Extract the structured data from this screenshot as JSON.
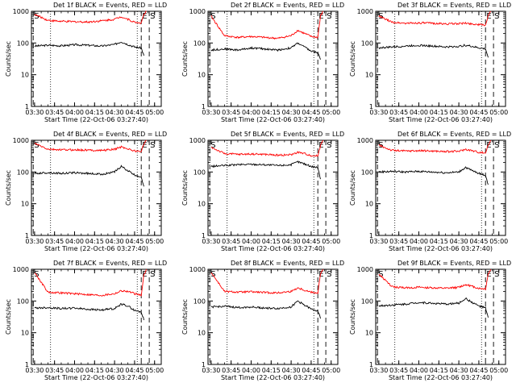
{
  "page": {
    "xlabel": "Start Time (22-Oct-06 03:27:40)",
    "ylabel": "Counts/sec"
  },
  "colors": {
    "events": "#000000",
    "lld": "#ff0000",
    "axes": "#000000"
  },
  "chart_data": [
    {
      "type": "line",
      "title": "Det 1f BLACK = Events, RED = LLD",
      "xlabel": "Start Time (22-Oct-06 03:27:40)",
      "ylabel": "Counts/sec",
      "xticks": [
        "03:30",
        "03:45",
        "04:00",
        "04:15",
        "04:30",
        "04:45",
        "05:00"
      ],
      "xlim": [
        "03:27:40",
        "05:05"
      ],
      "yscale": "log",
      "ylim": [
        1,
        1000
      ],
      "yticks": [
        "1",
        "10",
        "100",
        "1000"
      ],
      "markers": [
        {
          "label": "S",
          "time": "03:29"
        },
        {
          "label": "E",
          "time": "04:50"
        },
        {
          "label": "S",
          "time": "04:56"
        }
      ],
      "dotted_lines": [
        "03:42",
        "04:47"
      ],
      "series": [
        {
          "name": "Events",
          "time": [
            "03:30",
            "03:40",
            "03:50",
            "04:00",
            "04:10",
            "04:20",
            "04:30",
            "04:35",
            "04:40",
            "04:45",
            "04:50",
            "04:52"
          ],
          "values": [
            80,
            85,
            82,
            88,
            85,
            80,
            90,
            110,
            90,
            75,
            70,
            40
          ]
        },
        {
          "name": "LLD",
          "time": [
            "03:30",
            "03:40",
            "03:50",
            "04:00",
            "04:10",
            "04:20",
            "04:30",
            "04:35",
            "04:40",
            "04:45",
            "04:50",
            "04:52",
            "04:54"
          ],
          "values": [
            800,
            520,
            480,
            470,
            460,
            500,
            560,
            680,
            560,
            450,
            430,
            800,
            1000
          ]
        }
      ]
    },
    {
      "type": "line",
      "title": "Det 2f BLACK = Events, RED = LLD",
      "xlabel": "Start Time (22-Oct-06 03:27:40)",
      "ylabel": "Counts/sec",
      "xticks": [
        "03:30",
        "03:45",
        "04:00",
        "04:15",
        "04:30",
        "04:45",
        "05:00"
      ],
      "xlim": [
        "03:27:40",
        "05:05"
      ],
      "yscale": "log",
      "ylim": [
        1,
        1000
      ],
      "yticks": [
        "1",
        "10",
        "100",
        "1000"
      ],
      "markers": [
        {
          "label": "S",
          "time": "03:29"
        },
        {
          "label": "E",
          "time": "04:50"
        },
        {
          "label": "S",
          "time": "04:56"
        }
      ],
      "dotted_lines": [
        "03:42",
        "04:47"
      ],
      "series": [
        {
          "name": "Events",
          "time": [
            "03:30",
            "03:40",
            "03:50",
            "04:00",
            "04:10",
            "04:20",
            "04:30",
            "04:35",
            "04:40",
            "04:45",
            "04:50",
            "04:52"
          ],
          "values": [
            60,
            65,
            60,
            70,
            65,
            60,
            70,
            100,
            75,
            55,
            50,
            30
          ]
        },
        {
          "name": "LLD",
          "time": [
            "03:30",
            "03:40",
            "03:50",
            "04:00",
            "04:10",
            "04:20",
            "04:30",
            "04:35",
            "04:40",
            "04:45",
            "04:50",
            "04:52",
            "04:54"
          ],
          "values": [
            700,
            170,
            150,
            160,
            150,
            140,
            170,
            250,
            200,
            160,
            150,
            700,
            1000
          ]
        }
      ]
    },
    {
      "type": "line",
      "title": "Det 3f BLACK = Events, RED = LLD",
      "xlabel": "Start Time (22-Oct-06 03:27:40)",
      "ylabel": "Counts/sec",
      "xticks": [
        "03:30",
        "03:45",
        "04:00",
        "04:15",
        "04:30",
        "04:45",
        "05:00"
      ],
      "xlim": [
        "03:27:40",
        "05:05"
      ],
      "yscale": "log",
      "ylim": [
        1,
        1000
      ],
      "yticks": [
        "1",
        "10",
        "100",
        "1000"
      ],
      "markers": [
        {
          "label": "S",
          "time": "03:29"
        },
        {
          "label": "E",
          "time": "04:50"
        },
        {
          "label": "S",
          "time": "04:56"
        }
      ],
      "dotted_lines": [
        "03:42",
        "04:47"
      ],
      "series": [
        {
          "name": "Events",
          "time": [
            "03:30",
            "03:40",
            "03:50",
            "04:00",
            "04:10",
            "04:20",
            "04:30",
            "04:35",
            "04:40",
            "04:45",
            "04:50",
            "04:52"
          ],
          "values": [
            70,
            75,
            80,
            85,
            80,
            75,
            78,
            85,
            78,
            70,
            65,
            35
          ]
        },
        {
          "name": "LLD",
          "time": [
            "03:30",
            "03:40",
            "03:50",
            "04:00",
            "04:10",
            "04:20",
            "04:30",
            "04:35",
            "04:40",
            "04:45",
            "04:50",
            "04:52",
            "04:54"
          ],
          "values": [
            700,
            450,
            420,
            430,
            420,
            400,
            410,
            420,
            400,
            380,
            370,
            700,
            1000
          ]
        }
      ]
    },
    {
      "type": "line",
      "title": "Det 4f BLACK = Events, RED = LLD",
      "xlabel": "Start Time (22-Oct-06 03:27:40)",
      "ylabel": "Counts/sec",
      "xticks": [
        "03:30",
        "03:45",
        "04:00",
        "04:15",
        "04:30",
        "04:45",
        "05:00"
      ],
      "xlim": [
        "03:27:40",
        "05:05"
      ],
      "yscale": "log",
      "ylim": [
        1,
        1000
      ],
      "yticks": [
        "1",
        "10",
        "100",
        "1000"
      ],
      "markers": [
        {
          "label": "S",
          "time": "03:29"
        },
        {
          "label": "E",
          "time": "04:50"
        },
        {
          "label": "S",
          "time": "04:56"
        }
      ],
      "dotted_lines": [
        "03:42",
        "04:47"
      ],
      "series": [
        {
          "name": "Events",
          "time": [
            "03:30",
            "03:40",
            "03:50",
            "04:00",
            "04:10",
            "04:20",
            "04:30",
            "04:35",
            "04:40",
            "04:45",
            "04:50",
            "04:52"
          ],
          "values": [
            90,
            95,
            90,
            95,
            90,
            85,
            100,
            150,
            110,
            80,
            70,
            35
          ]
        },
        {
          "name": "LLD",
          "time": [
            "03:30",
            "03:40",
            "03:50",
            "04:00",
            "04:10",
            "04:20",
            "04:30",
            "04:35",
            "04:40",
            "04:45",
            "04:50",
            "04:52",
            "04:54"
          ],
          "values": [
            800,
            520,
            500,
            500,
            490,
            480,
            520,
            620,
            540,
            460,
            440,
            800,
            1000
          ]
        }
      ]
    },
    {
      "type": "line",
      "title": "Det 5f BLACK = Events, RED = LLD",
      "xlabel": "Start Time (22-Oct-06 03:27:40)",
      "ylabel": "Counts/sec",
      "xticks": [
        "03:30",
        "03:45",
        "04:00",
        "04:15",
        "04:30",
        "04:45",
        "05:00"
      ],
      "xlim": [
        "03:27:40",
        "05:05"
      ],
      "yscale": "log",
      "ylim": [
        1,
        1000
      ],
      "yticks": [
        "1",
        "10",
        "100",
        "1000"
      ],
      "markers": [
        {
          "label": "S",
          "time": "03:29"
        },
        {
          "label": "E",
          "time": "04:50"
        },
        {
          "label": "S",
          "time": "04:56"
        }
      ],
      "dotted_lines": [
        "03:42",
        "04:47"
      ],
      "series": [
        {
          "name": "Events",
          "time": [
            "03:30",
            "03:40",
            "03:50",
            "04:00",
            "04:10",
            "04:20",
            "04:30",
            "04:35",
            "04:40",
            "04:45",
            "04:50",
            "04:52"
          ],
          "values": [
            150,
            160,
            170,
            175,
            170,
            160,
            170,
            210,
            180,
            150,
            140,
            60
          ]
        },
        {
          "name": "LLD",
          "time": [
            "03:30",
            "03:40",
            "03:50",
            "04:00",
            "04:10",
            "04:20",
            "04:30",
            "04:35",
            "04:40",
            "04:45",
            "04:50",
            "04:52",
            "04:54"
          ],
          "values": [
            600,
            380,
            360,
            370,
            360,
            340,
            350,
            420,
            380,
            330,
            320,
            700,
            1000
          ]
        }
      ]
    },
    {
      "type": "line",
      "title": "Det 6f BLACK = Events, RED = LLD",
      "xlabel": "Start Time (22-Oct-06 03:27:40)",
      "ylabel": "Counts/sec",
      "xticks": [
        "03:30",
        "03:45",
        "04:00",
        "04:15",
        "04:30",
        "04:45",
        "05:00"
      ],
      "xlim": [
        "03:27:40",
        "05:05"
      ],
      "yscale": "log",
      "ylim": [
        1,
        1000
      ],
      "yticks": [
        "1",
        "10",
        "100",
        "1000"
      ],
      "markers": [
        {
          "label": "S",
          "time": "03:29"
        },
        {
          "label": "E",
          "time": "04:50"
        },
        {
          "label": "S",
          "time": "04:56"
        }
      ],
      "dotted_lines": [
        "03:42",
        "04:47"
      ],
      "series": [
        {
          "name": "Events",
          "time": [
            "03:30",
            "03:40",
            "03:50",
            "04:00",
            "04:10",
            "04:20",
            "04:30",
            "04:35",
            "04:40",
            "04:45",
            "04:50",
            "04:52"
          ],
          "values": [
            100,
            105,
            100,
            105,
            100,
            95,
            100,
            140,
            110,
            90,
            80,
            40
          ]
        },
        {
          "name": "LLD",
          "time": [
            "03:30",
            "03:40",
            "03:50",
            "04:00",
            "04:10",
            "04:20",
            "04:30",
            "04:35",
            "04:40",
            "04:45",
            "04:50",
            "04:52",
            "04:54"
          ],
          "values": [
            700,
            480,
            460,
            470,
            460,
            440,
            450,
            520,
            470,
            420,
            400,
            700,
            1000
          ]
        }
      ]
    },
    {
      "type": "line",
      "title": "Det 7f BLACK = Events, RED = LLD",
      "xlabel": "Start Time (22-Oct-06 03:27:40)",
      "ylabel": "Counts/sec",
      "xticks": [
        "03:30",
        "03:45",
        "04:00",
        "04:15",
        "04:30",
        "04:45",
        "05:00"
      ],
      "xlim": [
        "03:27:40",
        "05:05"
      ],
      "yscale": "log",
      "ylim": [
        1,
        1000
      ],
      "yticks": [
        "1",
        "10",
        "100",
        "1000"
      ],
      "markers": [
        {
          "label": "S",
          "time": "03:29"
        },
        {
          "label": "E",
          "time": "04:50"
        },
        {
          "label": "S",
          "time": "04:56"
        }
      ],
      "dotted_lines": [
        "03:42",
        "04:47"
      ],
      "series": [
        {
          "name": "Events",
          "time": [
            "03:30",
            "03:40",
            "03:50",
            "04:00",
            "04:10",
            "04:20",
            "04:30",
            "04:35",
            "04:40",
            "04:45",
            "04:50",
            "04:52"
          ],
          "values": [
            60,
            62,
            58,
            60,
            55,
            52,
            58,
            80,
            70,
            50,
            45,
            25
          ]
        },
        {
          "name": "LLD",
          "time": [
            "03:30",
            "03:40",
            "03:50",
            "04:00",
            "04:10",
            "04:20",
            "04:30",
            "04:35",
            "04:40",
            "04:45",
            "04:50",
            "04:52",
            "04:54"
          ],
          "values": [
            800,
            190,
            180,
            170,
            160,
            150,
            170,
            210,
            200,
            170,
            150,
            700,
            1000
          ]
        }
      ]
    },
    {
      "type": "line",
      "title": "Det 8f BLACK = Events, RED = LLD",
      "xlabel": "Start Time (22-Oct-06 03:27:40)",
      "ylabel": "Counts/sec",
      "xticks": [
        "03:30",
        "03:45",
        "04:00",
        "04:15",
        "04:30",
        "04:45",
        "05:00"
      ],
      "xlim": [
        "03:27:40",
        "05:05"
      ],
      "yscale": "log",
      "ylim": [
        1,
        1000
      ],
      "yticks": [
        "1",
        "10",
        "100",
        "1000"
      ],
      "markers": [
        {
          "label": "S",
          "time": "03:29"
        },
        {
          "label": "E",
          "time": "04:50"
        },
        {
          "label": "S",
          "time": "04:56"
        }
      ],
      "dotted_lines": [
        "03:42",
        "04:47"
      ],
      "series": [
        {
          "name": "Events",
          "time": [
            "03:30",
            "03:40",
            "03:50",
            "04:00",
            "04:10",
            "04:20",
            "04:30",
            "04:35",
            "04:40",
            "04:45",
            "04:50",
            "04:52"
          ],
          "values": [
            65,
            68,
            62,
            65,
            60,
            58,
            65,
            100,
            75,
            55,
            50,
            28
          ]
        },
        {
          "name": "LLD",
          "time": [
            "03:30",
            "03:40",
            "03:50",
            "04:00",
            "04:10",
            "04:20",
            "04:30",
            "04:35",
            "04:40",
            "04:45",
            "04:50",
            "04:52",
            "04:54"
          ],
          "values": [
            800,
            200,
            190,
            195,
            185,
            180,
            200,
            260,
            220,
            190,
            180,
            700,
            1000
          ]
        }
      ]
    },
    {
      "type": "line",
      "title": "Det 9f BLACK = Events, RED = LLD",
      "xlabel": "Start Time (22-Oct-06 03:27:40)",
      "ylabel": "Counts/sec",
      "xticks": [
        "03:30",
        "03:45",
        "04:00",
        "04:15",
        "04:30",
        "04:45",
        "05:00"
      ],
      "xlim": [
        "03:27:40",
        "05:05"
      ],
      "yscale": "log",
      "ylim": [
        1,
        1000
      ],
      "yticks": [
        "1",
        "10",
        "100",
        "1000"
      ],
      "markers": [
        {
          "label": "S",
          "time": "03:29"
        },
        {
          "label": "E",
          "time": "04:50"
        },
        {
          "label": "S",
          "time": "04:56"
        }
      ],
      "dotted_lines": [
        "03:42",
        "04:47"
      ],
      "series": [
        {
          "name": "Events",
          "time": [
            "03:30",
            "03:40",
            "03:50",
            "04:00",
            "04:10",
            "04:20",
            "04:30",
            "04:35",
            "04:40",
            "04:45",
            "04:50",
            "04:52"
          ],
          "values": [
            70,
            75,
            80,
            90,
            85,
            80,
            85,
            120,
            90,
            70,
            60,
            30
          ]
        },
        {
          "name": "LLD",
          "time": [
            "03:30",
            "03:40",
            "03:50",
            "04:00",
            "04:10",
            "04:20",
            "04:30",
            "04:35",
            "04:40",
            "04:45",
            "04:50",
            "04:52",
            "04:54"
          ],
          "values": [
            700,
            280,
            260,
            270,
            260,
            250,
            270,
            330,
            290,
            250,
            240,
            700,
            1000
          ]
        }
      ]
    }
  ]
}
